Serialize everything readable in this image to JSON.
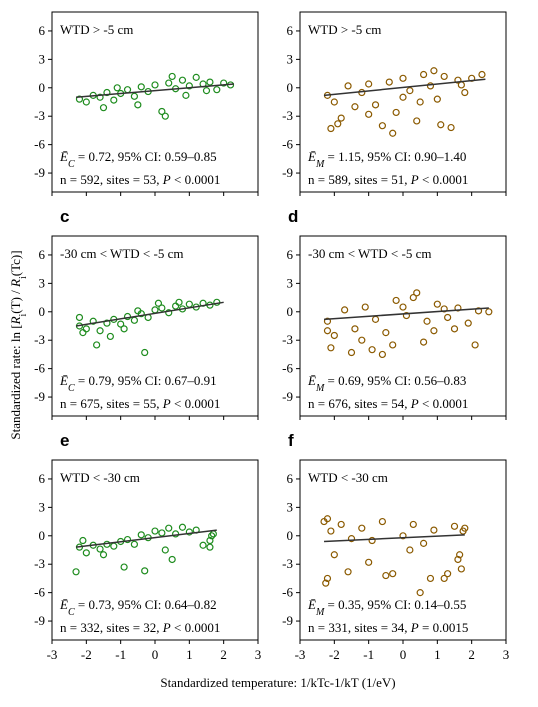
{
  "figure": {
    "ylabel_parts": [
      "Standardized rate: ln [",
      "R",
      "i",
      "(T) / ",
      "R",
      "i",
      "(Tc)]"
    ],
    "xlabel": "Standardized temperature: 1/kTc-1/kT (1/eV)"
  },
  "chart_data": [
    {
      "type": "scatter",
      "label": null,
      "wtd": "WTD > -5 cm",
      "color": "#1e8c1e",
      "est_symbol": "Ē",
      "est_sub": "C",
      "est_text": " = 0.72, 95% CI: 0.59–0.85",
      "n_text": "n = 592, sites = 53, ",
      "p_symbol": "P",
      "p_text": " < 0.0001",
      "x": [
        -2.2,
        -2.0,
        -1.8,
        -1.6,
        -1.4,
        -1.2,
        -1.0,
        -0.8,
        -0.6,
        -0.4,
        -0.2,
        0,
        0.2,
        0.4,
        0.6,
        0.8,
        1.0,
        1.2,
        1.4,
        1.6,
        1.8,
        2.0,
        2.2,
        -1.5,
        -0.5,
        0.3,
        0.9,
        -1.1,
        0.5,
        1.5
      ],
      "y": [
        -1.2,
        -1.5,
        -0.8,
        -1.0,
        -0.5,
        -1.3,
        -0.6,
        -0.2,
        -0.9,
        0.1,
        -0.4,
        0.3,
        -2.5,
        0.5,
        -0.1,
        0.8,
        0.2,
        1.1,
        0.4,
        0.6,
        -0.2,
        0.5,
        0.3,
        -2.1,
        -1.8,
        -3.0,
        -0.8,
        0.0,
        1.2,
        -0.3
      ],
      "fit": {
        "x": [
          -2.3,
          2.3
        ],
        "y": [
          -1.0,
          0.4
        ]
      },
      "xlim": [
        -3,
        3
      ],
      "ylim": [
        -11,
        8
      ],
      "xticks": [
        -3,
        -2,
        -1,
        0,
        1,
        2,
        3
      ],
      "yticks": [
        6,
        3,
        0,
        -3,
        -6,
        -9
      ]
    },
    {
      "type": "scatter",
      "label": null,
      "wtd": "WTD > -5 cm",
      "color": "#8b5a00",
      "est_symbol": "Ē",
      "est_sub": "M",
      "est_text": " = 1.15, 95% CI: 0.90–1.40",
      "n_text": "n = 589, sites = 51, ",
      "p_symbol": "P",
      "p_text": " < 0.0001",
      "x": [
        -2.2,
        -2.0,
        -1.8,
        -1.6,
        -1.4,
        -1.2,
        -1.0,
        -0.8,
        -0.6,
        -0.4,
        -0.2,
        0,
        0.2,
        0.4,
        0.6,
        0.8,
        1.0,
        1.2,
        1.4,
        1.6,
        1.8,
        2.0,
        2.3,
        -1.9,
        -1.0,
        -0.3,
        0.5,
        1.1,
        1.7,
        -2.1,
        0.0,
        0.9
      ],
      "y": [
        -0.8,
        -1.5,
        -3.2,
        0.2,
        -2.0,
        -0.5,
        0.4,
        -1.8,
        -4.0,
        0.6,
        -2.6,
        1.0,
        -0.3,
        -3.5,
        1.4,
        0.2,
        -1.2,
        1.2,
        -4.2,
        0.8,
        -0.5,
        1.0,
        1.4,
        -3.8,
        -2.8,
        -4.8,
        -1.5,
        -3.9,
        0.3,
        -4.3,
        -1.0,
        1.8
      ],
      "fit": {
        "x": [
          -2.3,
          2.4
        ],
        "y": [
          -0.8,
          0.9
        ]
      },
      "xlim": [
        -3,
        3
      ],
      "ylim": [
        -11,
        8
      ],
      "xticks": [
        -3,
        -2,
        -1,
        0,
        1,
        2,
        3
      ],
      "yticks": [
        6,
        3,
        0,
        -3,
        -6,
        -9
      ]
    },
    {
      "type": "scatter",
      "label": "c",
      "wtd": "-30 cm < WTD < -5 cm",
      "color": "#1e8c1e",
      "est_symbol": "Ē",
      "est_sub": "C",
      "est_text": " = 0.79, 95% CI: 0.67–0.91",
      "n_text": "n = 675, sites = 55, ",
      "p_symbol": "P",
      "p_text": " < 0.0001",
      "x": [
        -2.2,
        -2.0,
        -1.8,
        -1.6,
        -1.4,
        -1.2,
        -1.0,
        -0.8,
        -0.6,
        -0.4,
        -0.2,
        0,
        0.2,
        0.4,
        0.6,
        0.8,
        1.0,
        1.2,
        1.4,
        1.6,
        1.8,
        -2.1,
        -1.7,
        -1.3,
        -0.9,
        -0.5,
        0.1,
        -0.3,
        -2.2,
        0.7
      ],
      "y": [
        -1.5,
        -1.8,
        -1.0,
        -2.0,
        -1.2,
        -0.8,
        -1.3,
        -0.5,
        -0.9,
        -0.2,
        -0.6,
        0.2,
        0.4,
        -0.1,
        0.6,
        0.3,
        0.8,
        0.5,
        0.9,
        0.7,
        1.0,
        -2.2,
        -3.5,
        -2.6,
        -1.8,
        0.1,
        0.9,
        -4.3,
        -0.6,
        1.0
      ],
      "fit": {
        "x": [
          -2.3,
          2.0
        ],
        "y": [
          -1.5,
          1.0
        ]
      },
      "xlim": [
        -3,
        3
      ],
      "ylim": [
        -11,
        8
      ],
      "xticks": [
        -3,
        -2,
        -1,
        0,
        1,
        2,
        3
      ],
      "yticks": [
        6,
        3,
        0,
        -3,
        -6,
        -9
      ]
    },
    {
      "type": "scatter",
      "label": "d",
      "wtd": "-30 cm < WTD < -5 cm",
      "color": "#8b5a00",
      "est_symbol": "Ē",
      "est_sub": "M",
      "est_text": " = 0.69, 95% CI: 0.56–0.83",
      "n_text": "n = 676, sites = 54, ",
      "p_symbol": "P",
      "p_text": " < 0.0001",
      "x": [
        -2.2,
        -2.0,
        -1.7,
        -1.4,
        -1.1,
        -0.8,
        -0.5,
        -0.2,
        0.1,
        0.4,
        0.7,
        1.0,
        1.3,
        1.6,
        1.9,
        2.2,
        2.5,
        -2.1,
        -1.5,
        -0.9,
        -0.3,
        0.3,
        0.9,
        1.5,
        -1.2,
        -0.6,
        0.0,
        0.6,
        1.2,
        2.1,
        -2.2
      ],
      "y": [
        -1.0,
        -2.5,
        0.2,
        -1.8,
        0.5,
        -0.8,
        -2.2,
        1.2,
        -0.4,
        2.0,
        -1.0,
        0.8,
        -0.6,
        0.4,
        -1.2,
        0.1,
        0.0,
        -3.8,
        -4.3,
        -4.0,
        -3.5,
        1.5,
        -2.0,
        -1.8,
        -3.0,
        -4.5,
        0.5,
        -3.2,
        0.3,
        -3.5,
        -2.0
      ],
      "fit": {
        "x": [
          -2.3,
          2.5
        ],
        "y": [
          -0.8,
          0.4
        ]
      },
      "xlim": [
        -3,
        3
      ],
      "ylim": [
        -11,
        8
      ],
      "xticks": [
        -3,
        -2,
        -1,
        0,
        1,
        2,
        3
      ],
      "yticks": [
        6,
        3,
        0,
        -3,
        -6,
        -9
      ]
    },
    {
      "type": "scatter",
      "label": "e",
      "wtd": "WTD < -30 cm",
      "color": "#1e8c1e",
      "est_symbol": "Ē",
      "est_sub": "C",
      "est_text": " = 0.73, 95% CI: 0.64–0.82",
      "n_text": "n = 332, sites = 32, ",
      "p_symbol": "P",
      "p_text": " < 0.0001",
      "x": [
        -2.2,
        -2.0,
        -1.8,
        -1.6,
        -1.4,
        -1.2,
        -1.0,
        -0.8,
        -0.6,
        -0.4,
        -0.2,
        0,
        0.2,
        0.4,
        0.6,
        0.8,
        1.0,
        1.2,
        1.4,
        1.6,
        1.7,
        -2.3,
        -0.9,
        -0.3,
        0.3,
        1.6,
        -1.5,
        0.5,
        1.65,
        -2.1
      ],
      "y": [
        -1.2,
        -1.8,
        -1.0,
        -1.4,
        -0.9,
        -1.1,
        -0.6,
        -0.4,
        -0.9,
        0.1,
        -0.2,
        0.5,
        0.3,
        0.8,
        0.2,
        0.9,
        0.4,
        0.6,
        -1.0,
        -0.5,
        0.2,
        -3.8,
        -3.3,
        -3.7,
        -1.5,
        -1.2,
        -2.0,
        -2.5,
        0.0,
        -0.5
      ],
      "fit": {
        "x": [
          -2.3,
          1.8
        ],
        "y": [
          -1.2,
          0.6
        ]
      },
      "xlim": [
        -3,
        3
      ],
      "ylim": [
        -11,
        8
      ],
      "xticks": [
        -3,
        -2,
        -1,
        0,
        1,
        2,
        3
      ],
      "yticks": [
        6,
        3,
        0,
        -3,
        -6,
        -9
      ]
    },
    {
      "type": "scatter",
      "label": "f",
      "wtd": "WTD < -30 cm",
      "color": "#8b5a00",
      "est_symbol": "Ē",
      "est_sub": "M",
      "est_text": " = 0.35, 95% CI: 0.14–0.55",
      "n_text": "n = 331, sites = 34, ",
      "p_symbol": "P",
      "p_text": " = 0.0015",
      "x": [
        -2.3,
        -2.2,
        -2.1,
        -2.0,
        -1.8,
        -1.5,
        -1.2,
        -0.9,
        -0.6,
        -0.3,
        0,
        0.3,
        0.6,
        0.9,
        1.2,
        1.5,
        1.6,
        1.7,
        1.75,
        1.8,
        -2.25,
        -1.0,
        -0.5,
        0.2,
        0.8,
        1.3,
        -1.6,
        0.5,
        1.65,
        -2.2
      ],
      "y": [
        1.5,
        -4.5,
        0.5,
        -2.0,
        1.2,
        -0.3,
        0.8,
        -0.5,
        1.5,
        -4.0,
        0.0,
        1.2,
        -0.8,
        0.6,
        -4.5,
        1.0,
        -2.5,
        -3.5,
        0.5,
        0.8,
        -5.0,
        -2.8,
        -4.2,
        -1.5,
        -4.5,
        -4.0,
        -3.8,
        -6.0,
        -2.0,
        1.8
      ],
      "fit": {
        "x": [
          -2.3,
          1.8
        ],
        "y": [
          -0.6,
          0.1
        ]
      },
      "xlim": [
        -3,
        3
      ],
      "ylim": [
        -11,
        8
      ],
      "xticks": [
        -3,
        -2,
        -1,
        0,
        1,
        2,
        3
      ],
      "yticks": [
        6,
        3,
        0,
        -3,
        -6,
        -9
      ]
    }
  ]
}
